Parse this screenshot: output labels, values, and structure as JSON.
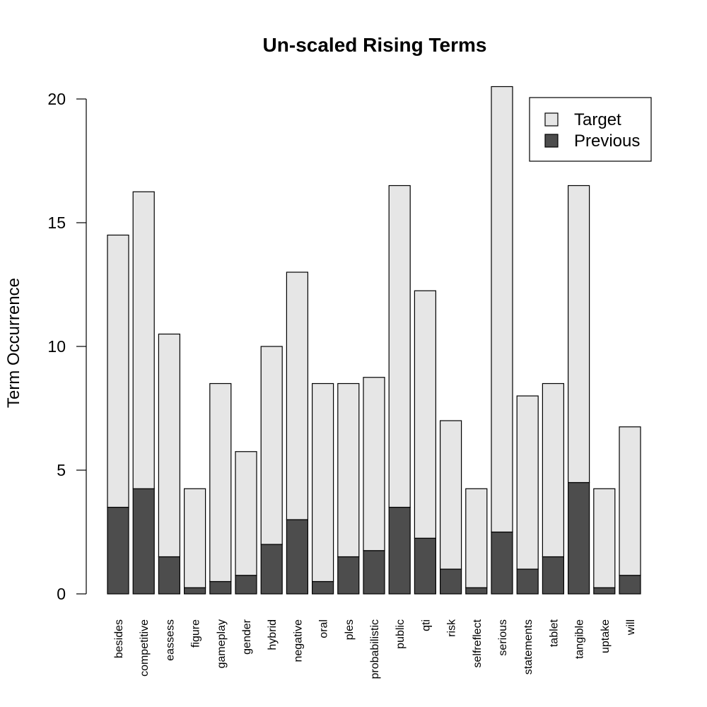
{
  "chart_data": {
    "type": "bar",
    "stacked": true,
    "title": "Un-scaled Rising Terms",
    "xlabel": "",
    "ylabel": "Term Occurrence",
    "ylim": [
      0,
      20.5
    ],
    "yticks": [
      0,
      5,
      10,
      15,
      20
    ],
    "grid": false,
    "legend_position": "top-right",
    "categories": [
      "besides",
      "competitive",
      "eassess",
      "figure",
      "gameplay",
      "gender",
      "hybrid",
      "negative",
      "oral",
      "ples",
      "probabilistic",
      "public",
      "qti",
      "risk",
      "selfreflect",
      "serious",
      "statements",
      "tablet",
      "tangible",
      "uptake",
      "will"
    ],
    "series": [
      {
        "name": "Previous",
        "color": "#4d4d4d",
        "values": [
          3.5,
          4.25,
          1.5,
          0.25,
          0.5,
          0.75,
          2.0,
          3.0,
          0.5,
          1.5,
          1.75,
          3.5,
          2.25,
          1.0,
          0.25,
          2.5,
          1.0,
          1.5,
          4.5,
          0.25,
          0.75
        ]
      },
      {
        "name": "Target",
        "color": "#e6e6e6",
        "values": [
          11.0,
          12.0,
          9.0,
          4.0,
          8.0,
          5.0,
          8.0,
          10.0,
          8.0,
          7.0,
          7.0,
          13.0,
          10.0,
          6.0,
          4.0,
          18.0,
          7.0,
          7.0,
          12.0,
          4.0,
          6.0
        ]
      }
    ],
    "legend_order": [
      "Target",
      "Previous"
    ]
  }
}
